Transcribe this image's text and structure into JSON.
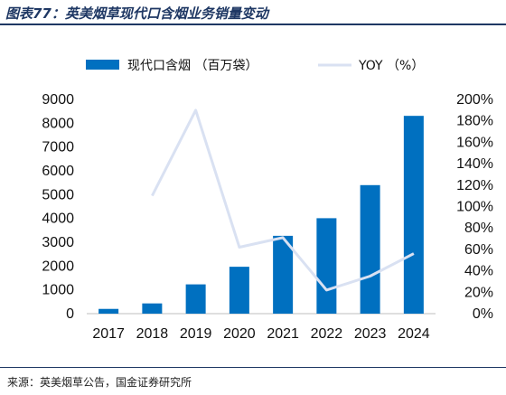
{
  "header": {
    "title": "图表77：英美烟草现代口含烟业务销量变动"
  },
  "footer": {
    "source": "来源：英美烟草公告，国金证券研究所"
  },
  "chart_data": {
    "type": "bar",
    "categories": [
      "2017",
      "2018",
      "2019",
      "2020",
      "2021",
      "2022",
      "2023",
      "2024"
    ],
    "series": [
      {
        "name": "现代口含烟 （百万袋）",
        "type": "bar",
        "axis": "left",
        "color": "#0070c0",
        "values": [
          200,
          430,
          1230,
          1970,
          3270,
          4010,
          5400,
          8310
        ]
      },
      {
        "name": "YOY （%）",
        "type": "line",
        "axis": "right",
        "color": "#d9e1f2",
        "values": [
          null,
          110,
          190,
          62,
          71,
          22,
          35,
          56
        ]
      }
    ],
    "y_left": {
      "min": 0,
      "max": 9000,
      "ticks": [
        "0",
        "1000",
        "2000",
        "3000",
        "4000",
        "5000",
        "6000",
        "7000",
        "8000",
        "9000"
      ]
    },
    "y_right": {
      "min": 0,
      "max": 200,
      "ticks": [
        "0%",
        "20%",
        "40%",
        "60%",
        "80%",
        "100%",
        "120%",
        "140%",
        "160%",
        "180%",
        "200%"
      ]
    },
    "grid": false,
    "legend": "top"
  }
}
